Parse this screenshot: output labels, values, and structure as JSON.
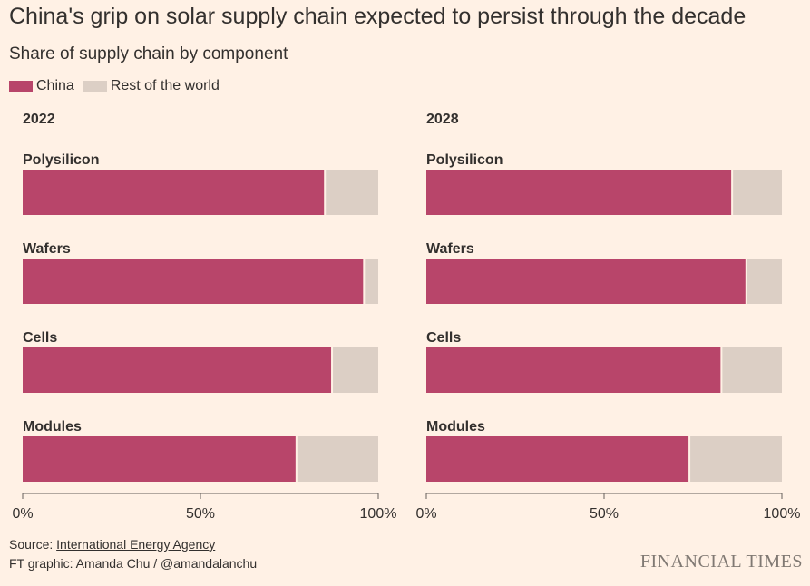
{
  "title": "China's grip on solar supply chain expected to persist through the decade",
  "subtitle": "Share of supply chain by component",
  "legend": [
    {
      "label": "China",
      "color": "#b8456a"
    },
    {
      "label": "Rest of the world",
      "color": "#dccfc5"
    }
  ],
  "colors": {
    "china": "#b8456a",
    "rest": "#dccfc5",
    "axis": "#66605c",
    "background": "#fff1e5"
  },
  "chart_data": [
    {
      "type": "bar",
      "orientation": "horizontal",
      "stacked": true,
      "title": "2022",
      "categories": [
        "Polysilicon",
        "Wafers",
        "Cells",
        "Modules"
      ],
      "series": [
        {
          "name": "China",
          "values": [
            85,
            96,
            87,
            77
          ]
        },
        {
          "name": "Rest of the world",
          "values": [
            15,
            4,
            13,
            23
          ]
        }
      ],
      "xlim": [
        0,
        100
      ],
      "xticks": [
        "0%",
        "50%",
        "100%"
      ]
    },
    {
      "type": "bar",
      "orientation": "horizontal",
      "stacked": true,
      "title": "2028",
      "categories": [
        "Polysilicon",
        "Wafers",
        "Cells",
        "Modules"
      ],
      "series": [
        {
          "name": "China",
          "values": [
            86,
            90,
            83,
            74
          ]
        },
        {
          "name": "Rest of the world",
          "values": [
            14,
            10,
            17,
            26
          ]
        }
      ],
      "xlim": [
        0,
        100
      ],
      "xticks": [
        "0%",
        "50%",
        "100%"
      ]
    }
  ],
  "footer": {
    "source_prefix": "Source: ",
    "source_link": "International Energy Agency",
    "credit": "FT graphic: Amanda Chu / @amandalanchu",
    "logo": "FINANCIAL TIMES"
  }
}
